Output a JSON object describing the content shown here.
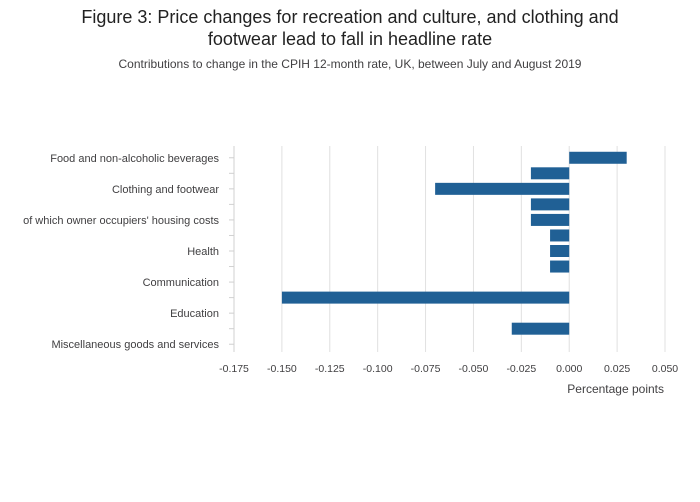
{
  "title": {
    "line1": "Figure 3: Price changes for recreation and culture, and clothing and",
    "line2": "footwear lead to fall in headline rate"
  },
  "subtitle": "Contributions to change in the CPIH 12-month rate, UK, between July and August 2019",
  "chart_data": {
    "type": "bar",
    "orientation": "horizontal",
    "categories": [
      "Food and non-alcoholic beverages",
      "",
      "Clothing and footwear",
      "",
      "of which owner occupiers' housing costs",
      "",
      "Health",
      "",
      "Communication",
      "",
      "Education",
      "",
      "Miscellaneous goods and services"
    ],
    "values": [
      0.03,
      -0.02,
      -0.07,
      -0.02,
      -0.02,
      -0.01,
      -0.01,
      -0.01,
      null,
      -0.15,
      null,
      -0.03,
      null
    ],
    "xlabel": "Percentage points",
    "ylabel": "",
    "xlim": [
      -0.175,
      0.05
    ],
    "xticks": [
      -0.175,
      -0.15,
      -0.125,
      -0.1,
      -0.075,
      -0.05,
      -0.025,
      0.0,
      0.025,
      0.05
    ],
    "xtick_labels": [
      "-0.175",
      "-0.150",
      "-0.125",
      "-0.100",
      "-0.075",
      "-0.050",
      "-0.025",
      "0.000",
      "0.025",
      "0.050"
    ],
    "grid": "vertical",
    "bar_color": "#206095",
    "grid_color": "#e0e0e0",
    "text_color": "#414042"
  }
}
